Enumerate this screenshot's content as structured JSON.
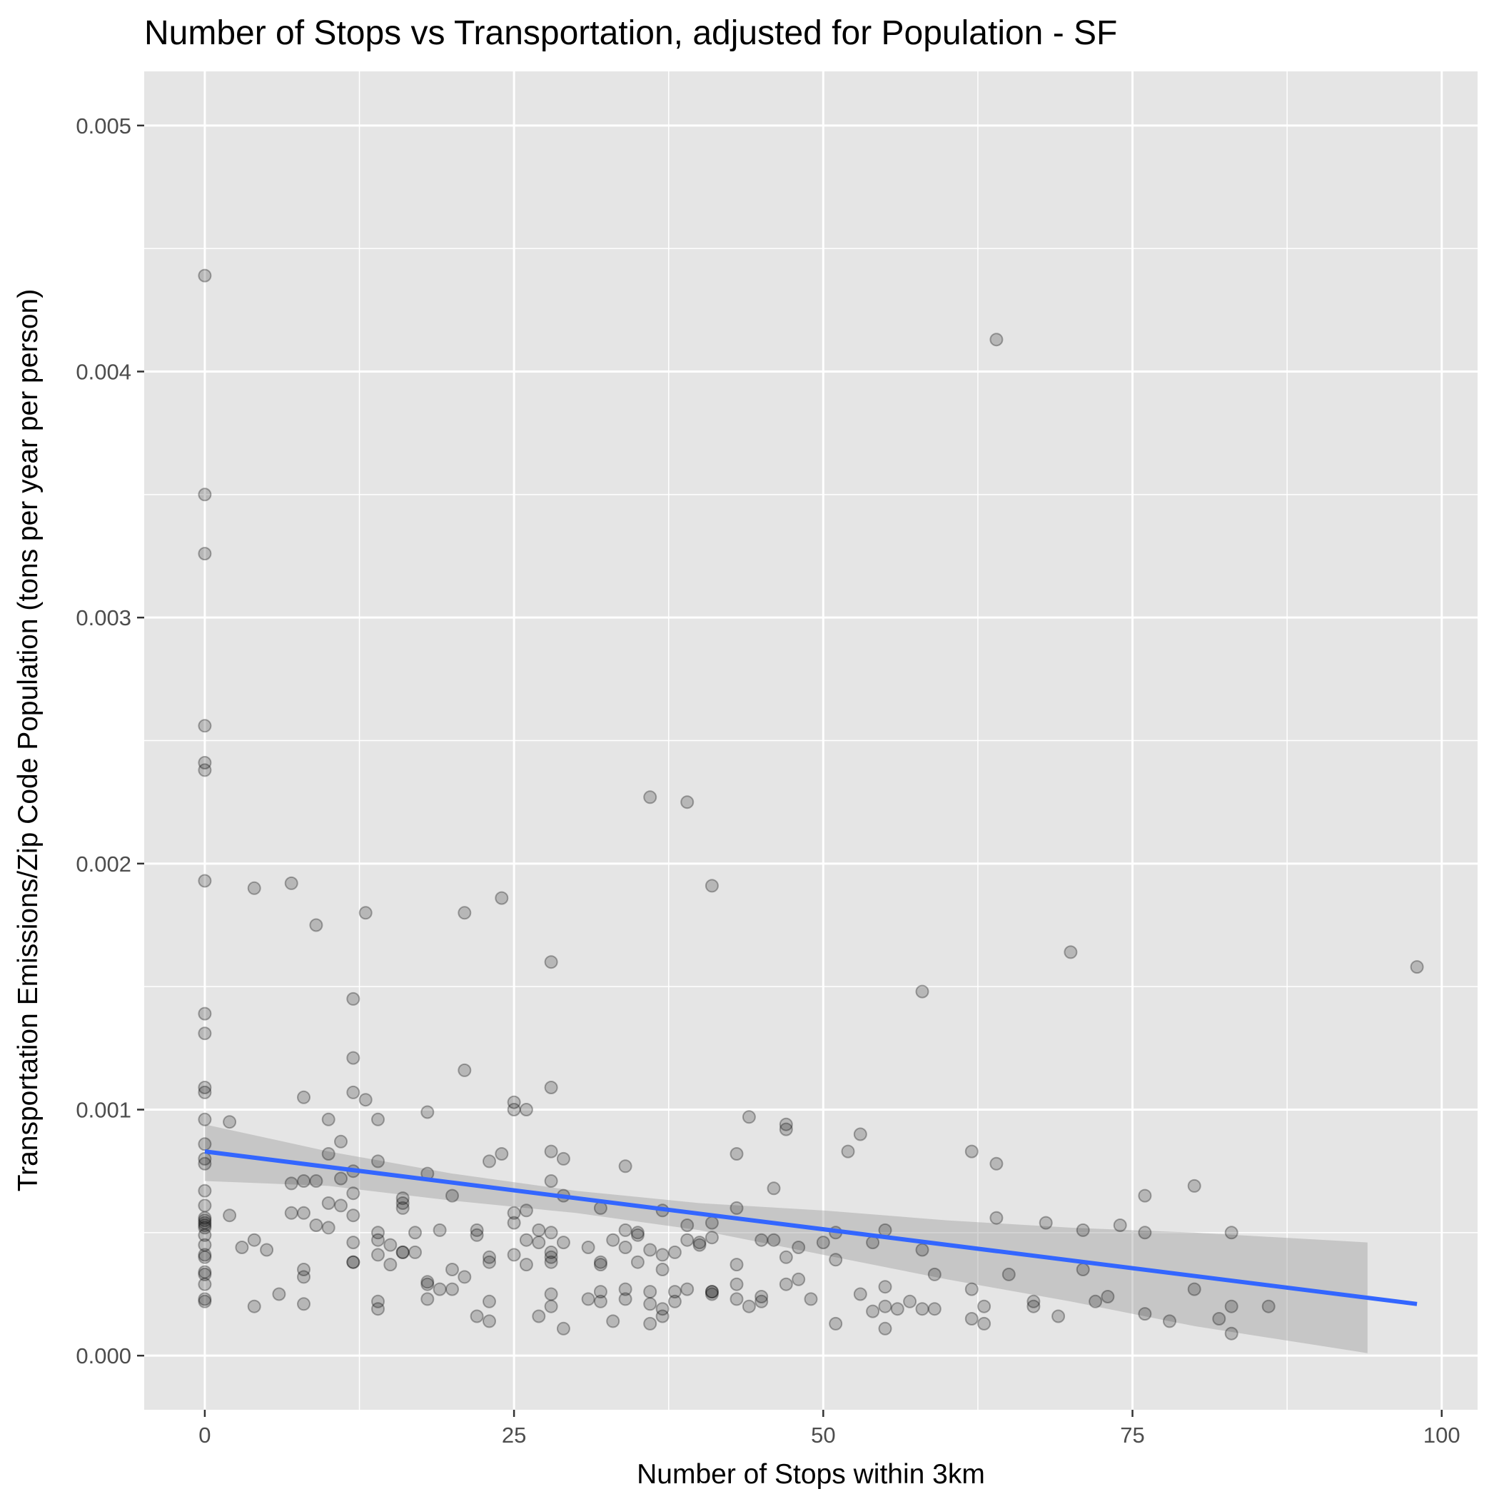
{
  "chart_data": {
    "type": "scatter",
    "title": "Number of Stops vs Transportation, adjusted for Population - SF",
    "xlabel": "Number of Stops within 3km",
    "ylabel": "Transportation Emissions/Zip Code Population (tons per year per person)",
    "xlim": [
      -4.9,
      102.9
    ],
    "ylim": [
      -0.00022,
      0.00522
    ],
    "x_ticks": [
      0,
      25,
      50,
      75,
      100
    ],
    "x_tick_labels": [
      "0",
      "25",
      "50",
      "75",
      "100"
    ],
    "y_ticks": [
      0,
      0.001,
      0.002,
      0.003,
      0.004,
      0.005
    ],
    "y_tick_labels": [
      "0.000",
      "0.001",
      "0.002",
      "0.003",
      "0.004",
      "0.005"
    ],
    "grid": true,
    "colors": {
      "panel": "#e5e5e5",
      "points": "#000000",
      "fit_line": "#3366ff",
      "band": "#999999"
    },
    "points": [
      [
        0,
        0.00439
      ],
      [
        0,
        0.0035
      ],
      [
        0,
        0.00326
      ],
      [
        0,
        0.00256
      ],
      [
        0,
        0.00241
      ],
      [
        0,
        0.00238
      ],
      [
        0,
        0.00193
      ],
      [
        0,
        0.00139
      ],
      [
        0,
        0.00131
      ],
      [
        0,
        0.00109
      ],
      [
        0,
        0.00107
      ],
      [
        0,
        0.00096
      ],
      [
        0,
        0.00086
      ],
      [
        0,
        0.0008
      ],
      [
        0,
        0.00078
      ],
      [
        0,
        0.00067
      ],
      [
        0,
        0.00061
      ],
      [
        0,
        0.00056
      ],
      [
        0,
        0.00055
      ],
      [
        0,
        0.00054
      ],
      [
        0,
        0.00053
      ],
      [
        0,
        0.00052
      ],
      [
        0,
        0.00049
      ],
      [
        0,
        0.00045
      ],
      [
        0,
        0.00041
      ],
      [
        0,
        0.0004
      ],
      [
        0,
        0.00034
      ],
      [
        0,
        0.00033
      ],
      [
        0,
        0.00029
      ],
      [
        0,
        0.00023
      ],
      [
        0,
        0.00022
      ],
      [
        2,
        0.00095
      ],
      [
        2,
        0.00057
      ],
      [
        3,
        0.00044
      ],
      [
        4,
        0.0019
      ],
      [
        4,
        0.00047
      ],
      [
        4,
        0.0002
      ],
      [
        5,
        0.00043
      ],
      [
        6,
        0.00025
      ],
      [
        7,
        0.00192
      ],
      [
        7,
        0.0007
      ],
      [
        7,
        0.00058
      ],
      [
        8,
        0.00105
      ],
      [
        8,
        0.00071
      ],
      [
        8,
        0.00058
      ],
      [
        8,
        0.00035
      ],
      [
        8,
        0.00032
      ],
      [
        8,
        0.00021
      ],
      [
        9,
        0.00175
      ],
      [
        9,
        0.00071
      ],
      [
        9,
        0.00053
      ],
      [
        10,
        0.00096
      ],
      [
        10,
        0.00082
      ],
      [
        10,
        0.00062
      ],
      [
        10,
        0.00052
      ],
      [
        11,
        0.00087
      ],
      [
        11,
        0.00072
      ],
      [
        11,
        0.00061
      ],
      [
        12,
        0.00145
      ],
      [
        12,
        0.00121
      ],
      [
        12,
        0.00107
      ],
      [
        12,
        0.00075
      ],
      [
        12,
        0.00066
      ],
      [
        12,
        0.00057
      ],
      [
        12,
        0.00046
      ],
      [
        12,
        0.00038
      ],
      [
        12,
        0.00038
      ],
      [
        13,
        0.0018
      ],
      [
        13,
        0.00104
      ],
      [
        14,
        0.00096
      ],
      [
        14,
        0.00079
      ],
      [
        14,
        0.0005
      ],
      [
        14,
        0.00047
      ],
      [
        14,
        0.00041
      ],
      [
        14,
        0.00022
      ],
      [
        14,
        0.00019
      ],
      [
        15,
        0.00045
      ],
      [
        15,
        0.00037
      ],
      [
        16,
        0.00064
      ],
      [
        16,
        0.00062
      ],
      [
        16,
        0.0006
      ],
      [
        16,
        0.00042
      ],
      [
        16,
        0.00042
      ],
      [
        17,
        0.0005
      ],
      [
        17,
        0.00042
      ],
      [
        18,
        0.00099
      ],
      [
        18,
        0.00074
      ],
      [
        18,
        0.0003
      ],
      [
        18,
        0.00029
      ],
      [
        18,
        0.00023
      ],
      [
        19,
        0.00051
      ],
      [
        19,
        0.00027
      ],
      [
        20,
        0.00065
      ],
      [
        20,
        0.00035
      ],
      [
        20,
        0.00027
      ],
      [
        21,
        0.0018
      ],
      [
        21,
        0.00116
      ],
      [
        21,
        0.00032
      ],
      [
        22,
        0.00051
      ],
      [
        22,
        0.00049
      ],
      [
        22,
        0.00016
      ],
      [
        23,
        0.00079
      ],
      [
        23,
        0.0004
      ],
      [
        23,
        0.00038
      ],
      [
        23,
        0.00022
      ],
      [
        23,
        0.00014
      ],
      [
        24,
        0.00186
      ],
      [
        24,
        0.00082
      ],
      [
        25,
        0.00103
      ],
      [
        25,
        0.001
      ],
      [
        25,
        0.00058
      ],
      [
        25,
        0.00054
      ],
      [
        25,
        0.00041
      ],
      [
        26,
        0.001
      ],
      [
        26,
        0.00059
      ],
      [
        26,
        0.00047
      ],
      [
        26,
        0.00037
      ],
      [
        27,
        0.00051
      ],
      [
        27,
        0.00046
      ],
      [
        27,
        0.00016
      ],
      [
        28,
        0.0016
      ],
      [
        28,
        0.00109
      ],
      [
        28,
        0.00083
      ],
      [
        28,
        0.00071
      ],
      [
        28,
        0.0005
      ],
      [
        28,
        0.00042
      ],
      [
        28,
        0.0004
      ],
      [
        28,
        0.00038
      ],
      [
        28,
        0.00025
      ],
      [
        28,
        0.0002
      ],
      [
        29,
        0.0008
      ],
      [
        29,
        0.00065
      ],
      [
        29,
        0.00046
      ],
      [
        29,
        0.00011
      ],
      [
        31,
        0.00044
      ],
      [
        31,
        0.00023
      ],
      [
        32,
        0.0006
      ],
      [
        32,
        0.00038
      ],
      [
        32,
        0.00037
      ],
      [
        32,
        0.00026
      ],
      [
        32,
        0.00022
      ],
      [
        33,
        0.00047
      ],
      [
        33,
        0.00014
      ],
      [
        34,
        0.00077
      ],
      [
        34,
        0.00051
      ],
      [
        34,
        0.00044
      ],
      [
        34,
        0.00027
      ],
      [
        34,
        0.00023
      ],
      [
        35,
        0.0005
      ],
      [
        35,
        0.00049
      ],
      [
        35,
        0.00038
      ],
      [
        36,
        0.00227
      ],
      [
        36,
        0.00043
      ],
      [
        36,
        0.00026
      ],
      [
        36,
        0.00021
      ],
      [
        36,
        0.00013
      ],
      [
        37,
        0.00059
      ],
      [
        37,
        0.00041
      ],
      [
        37,
        0.00035
      ],
      [
        37,
        0.00019
      ],
      [
        37,
        0.00016
      ],
      [
        38,
        0.00042
      ],
      [
        38,
        0.00026
      ],
      [
        38,
        0.00022
      ],
      [
        39,
        0.00225
      ],
      [
        39,
        0.00053
      ],
      [
        39,
        0.00047
      ],
      [
        39,
        0.00027
      ],
      [
        40,
        0.00046
      ],
      [
        40,
        0.00045
      ],
      [
        41,
        0.00191
      ],
      [
        41,
        0.00054
      ],
      [
        41,
        0.00048
      ],
      [
        41,
        0.00026
      ],
      [
        41,
        0.00026
      ],
      [
        41,
        0.00025
      ],
      [
        43,
        0.00082
      ],
      [
        43,
        0.0006
      ],
      [
        43,
        0.00037
      ],
      [
        43,
        0.00029
      ],
      [
        43,
        0.00023
      ],
      [
        44,
        0.00097
      ],
      [
        44,
        0.0002
      ],
      [
        45,
        0.00047
      ],
      [
        45,
        0.00024
      ],
      [
        45,
        0.00022
      ],
      [
        46,
        0.00068
      ],
      [
        46,
        0.00047
      ],
      [
        47,
        0.00094
      ],
      [
        47,
        0.00092
      ],
      [
        47,
        0.0004
      ],
      [
        47,
        0.00029
      ],
      [
        48,
        0.00044
      ],
      [
        48,
        0.00031
      ],
      [
        49,
        0.00023
      ],
      [
        50,
        0.00046
      ],
      [
        51,
        0.0005
      ],
      [
        51,
        0.00039
      ],
      [
        51,
        0.00013
      ],
      [
        52,
        0.00083
      ],
      [
        53,
        0.0009
      ],
      [
        53,
        0.00025
      ],
      [
        54,
        0.00046
      ],
      [
        54,
        0.00018
      ],
      [
        55,
        0.00051
      ],
      [
        55,
        0.00028
      ],
      [
        55,
        0.0002
      ],
      [
        55,
        0.00011
      ],
      [
        56,
        0.00019
      ],
      [
        57,
        0.00022
      ],
      [
        58,
        0.00148
      ],
      [
        58,
        0.00043
      ],
      [
        58,
        0.00019
      ],
      [
        59,
        0.00033
      ],
      [
        59,
        0.00019
      ],
      [
        62,
        0.00083
      ],
      [
        62,
        0.00027
      ],
      [
        62,
        0.00015
      ],
      [
        63,
        0.0002
      ],
      [
        63,
        0.00013
      ],
      [
        64,
        0.00413
      ],
      [
        64,
        0.00078
      ],
      [
        64,
        0.00056
      ],
      [
        65,
        0.00033
      ],
      [
        67,
        0.00022
      ],
      [
        67,
        0.0002
      ],
      [
        68,
        0.00054
      ],
      [
        69,
        0.00016
      ],
      [
        70,
        0.00164
      ],
      [
        71,
        0.00051
      ],
      [
        71,
        0.00035
      ],
      [
        72,
        0.00022
      ],
      [
        73,
        0.00024
      ],
      [
        74,
        0.00053
      ],
      [
        76,
        0.00065
      ],
      [
        76,
        0.0005
      ],
      [
        76,
        0.00017
      ],
      [
        78,
        0.00014
      ],
      [
        80,
        0.00069
      ],
      [
        80,
        0.00027
      ],
      [
        82,
        0.00015
      ],
      [
        83,
        0.0005
      ],
      [
        83,
        0.0002
      ],
      [
        83,
        9e-05
      ],
      [
        86,
        0.0002
      ],
      [
        98,
        0.00158
      ]
    ],
    "fit_line": {
      "x": [
        0,
        98
      ],
      "y": [
        0.00083,
        0.00021
      ]
    },
    "confidence_band": {
      "x": [
        0,
        10,
        20,
        30,
        40,
        50,
        60,
        70,
        80,
        94
      ],
      "lower": [
        0.00071,
        0.00069,
        0.00063,
        0.00058,
        0.00051,
        0.00041,
        0.00031,
        0.00022,
        0.00012,
        1e-05
      ],
      "upper": [
        0.00094,
        0.00083,
        0.00074,
        0.00067,
        0.00062,
        0.00059,
        0.00055,
        0.00052,
        0.0005,
        0.00046
      ]
    }
  }
}
